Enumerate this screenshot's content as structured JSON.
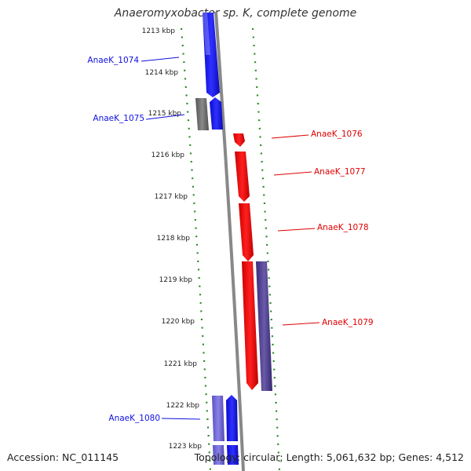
{
  "title": "Anaeromyxobacter sp. K, complete genome",
  "footer": {
    "accession": "Accession: NC_011145",
    "summary": "Topology: circular; Length: 5,061,632 bp; Genes: 4,512"
  },
  "colors": {
    "forward_strand": "#1010e0",
    "forward_strand_light": "#6a60c8",
    "reverse_strand": "#e00000",
    "reverse_strand_dark": "#4a3a8a",
    "other": "#666666",
    "tick_marks": "#2a8a2a",
    "backbone": "#888888"
  },
  "scale": {
    "unit": "kbp",
    "ticks": [
      "1213 kbp",
      "1214 kbp",
      "1215 kbp",
      "1216 kbp",
      "1217 kbp",
      "1218 kbp",
      "1219 kbp",
      "1220 kbp",
      "1221 kbp",
      "1222 kbp",
      "1223 kbp"
    ]
  },
  "genes": [
    {
      "label": "AnaeK_1074",
      "strand": "+",
      "color": "#1010e0"
    },
    {
      "label": "AnaeK_1075",
      "strand": "+",
      "color": "#1010e0"
    },
    {
      "label": "AnaeK_1076",
      "strand": "-",
      "color": "#e00000"
    },
    {
      "label": "AnaeK_1077",
      "strand": "-",
      "color": "#e00000"
    },
    {
      "label": "AnaeK_1078",
      "strand": "-",
      "color": "#e00000"
    },
    {
      "label": "AnaeK_1079",
      "strand": "-",
      "color": "#e00000"
    },
    {
      "label": "AnaeK_1080",
      "strand": "+",
      "color": "#1010e0"
    }
  ]
}
